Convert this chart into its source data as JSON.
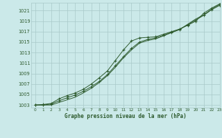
{
  "title": "Graphe pression niveau de la mer (hPa)",
  "bg_color": "#cbe9e9",
  "grid_color": "#a8c8c8",
  "line_color": "#2d5a2d",
  "text_color": "#2d5a2d",
  "xlim": [
    -0.5,
    23
  ],
  "ylim": [
    1002.5,
    1022.5
  ],
  "yticks": [
    1003,
    1005,
    1007,
    1009,
    1011,
    1013,
    1015,
    1017,
    1019,
    1021
  ],
  "xticks": [
    0,
    1,
    2,
    3,
    4,
    5,
    6,
    7,
    8,
    9,
    10,
    11,
    12,
    13,
    14,
    15,
    16,
    17,
    18,
    19,
    20,
    21,
    22,
    23
  ],
  "series1_marked": [
    1003.0,
    1003.1,
    1003.3,
    1004.2,
    1004.8,
    1005.3,
    1006.0,
    1007.0,
    1008.2,
    1009.5,
    1011.5,
    1013.5,
    1015.2,
    1015.8,
    1015.9,
    1016.0,
    1016.5,
    1017.0,
    1017.5,
    1018.2,
    1019.0,
    1020.5,
    1021.5,
    1022.3
  ],
  "series2_marked": [
    1003.0,
    1003.0,
    1003.2,
    1003.8,
    1004.4,
    1004.9,
    1005.6,
    1006.5,
    1007.5,
    1008.8,
    1010.5,
    1012.2,
    1013.8,
    1015.0,
    1015.5,
    1015.8,
    1016.3,
    1016.9,
    1017.4,
    1018.3,
    1019.2,
    1020.1,
    1021.2,
    1022.0
  ],
  "series3_plain": [
    1003.0,
    1003.0,
    1003.0,
    1003.5,
    1004.0,
    1004.5,
    1005.3,
    1006.2,
    1007.3,
    1008.6,
    1010.2,
    1012.0,
    1013.5,
    1014.8,
    1015.3,
    1015.6,
    1016.2,
    1016.8,
    1017.4,
    1018.4,
    1019.4,
    1020.2,
    1021.3,
    1022.2
  ]
}
